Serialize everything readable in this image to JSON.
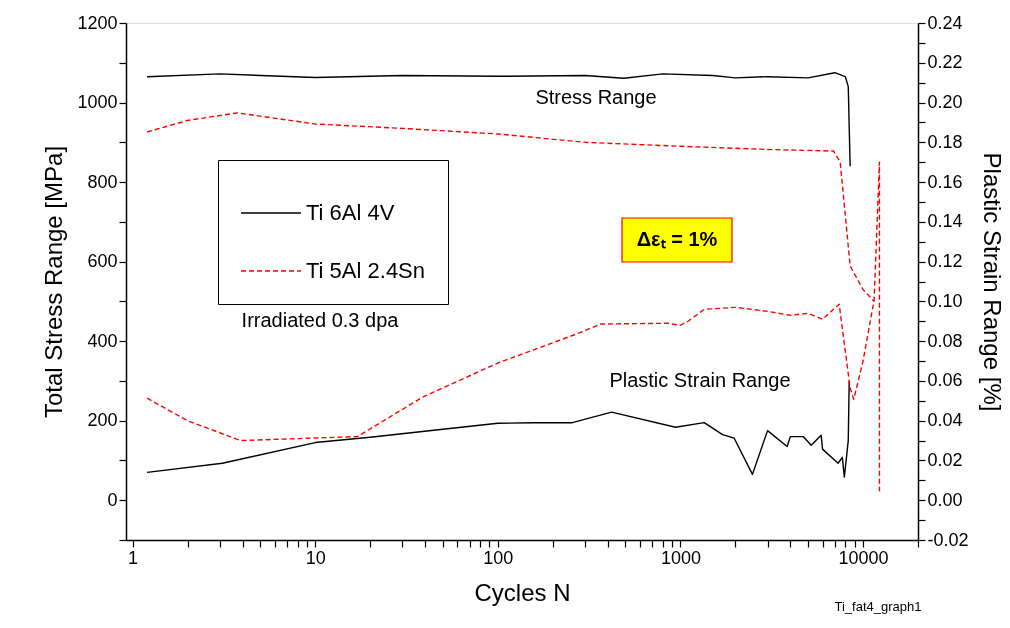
{
  "chart_data": {
    "type": "line",
    "xlabel": "Cycles N",
    "ylabel": "Total Stress Range [MPa]",
    "y2label": "Plastic Strain Range [%]",
    "log": "x",
    "grid": false,
    "legend": "top left",
    "xlim": [
      0.92,
      20000
    ],
    "xticks": [
      1,
      {
        "value": 2,
        "label": null
      },
      {
        "value": 3,
        "label": null
      },
      {
        "value": 4,
        "label": null
      },
      {
        "value": 5,
        "label": null
      },
      {
        "value": 6,
        "label": null
      },
      {
        "value": 7,
        "label": null
      },
      {
        "value": 8,
        "label": null
      },
      {
        "value": 9,
        "label": null
      },
      10,
      {
        "value": 20,
        "label": null
      },
      {
        "value": 30,
        "label": null
      },
      {
        "value": 40,
        "label": null
      },
      {
        "value": 50,
        "label": null
      },
      {
        "value": 60,
        "label": null
      },
      {
        "value": 70,
        "label": null
      },
      {
        "value": 80,
        "label": null
      },
      {
        "value": 90,
        "label": null
      },
      100,
      {
        "value": 200,
        "label": null
      },
      {
        "value": 300,
        "label": null
      },
      {
        "value": 400,
        "label": null
      },
      {
        "value": 500,
        "label": null
      },
      {
        "value": 600,
        "label": null
      },
      {
        "value": 700,
        "label": null
      },
      {
        "value": 800,
        "label": null
      },
      {
        "value": 900,
        "label": null
      },
      1000,
      {
        "value": 2000,
        "label": null
      },
      {
        "value": 3000,
        "label": null
      },
      {
        "value": 4000,
        "label": null
      },
      {
        "value": 5000,
        "label": null
      },
      {
        "value": 6000,
        "label": null
      },
      {
        "value": 7000,
        "label": null
      },
      {
        "value": 8000,
        "label": null
      },
      {
        "value": 9000,
        "label": null
      },
      10000,
      {
        "value": 20000,
        "label": null
      }
    ],
    "ylim": [
      -100,
      1200
    ],
    "yticks": [
      {
        "value": -100,
        "label": null
      },
      0,
      {
        "value": 100,
        "label": null
      },
      200,
      {
        "value": 300,
        "label": null
      },
      400,
      {
        "value": 500,
        "label": null
      },
      600,
      {
        "value": 700,
        "label": null
      },
      800,
      {
        "value": 900,
        "label": null
      },
      1000,
      {
        "value": 1100,
        "label": null
      },
      1200
    ],
    "y2lim": [
      -0.02,
      0.24
    ],
    "y2ticks": [
      -0.02,
      {
        "value": -0.01,
        "label": null
      },
      {
        "value": 0,
        "label": "0.00"
      },
      {
        "value": 0.01,
        "label": null
      },
      0.02,
      {
        "value": 0.03,
        "label": null
      },
      0.04,
      {
        "value": 0.05,
        "label": null
      },
      0.06,
      {
        "value": 0.07,
        "label": null
      },
      0.08,
      {
        "value": 0.09,
        "label": null
      },
      {
        "value": 0.1,
        "label": "0.10"
      },
      {
        "value": 0.11,
        "label": null
      },
      0.12,
      {
        "value": 0.13,
        "label": null
      },
      0.14,
      {
        "value": 0.15,
        "label": null
      },
      0.16,
      {
        "value": 0.17,
        "label": null
      },
      0.18,
      {
        "value": 0.19,
        "label": null
      },
      {
        "value": 0.2,
        "label": "0.20"
      },
      {
        "value": 0.21,
        "label": null
      },
      0.22,
      {
        "value": 0.23,
        "label": null
      },
      0.24
    ],
    "annotations": [
      "Stress Range",
      "Plastic Strain Range",
      "Irradiated 0.3 dpa",
      "Δεₜ = 1%",
      "Ti_fat4_graph1"
    ],
    "series": [
      {
        "name": "Ti 6Al 4V",
        "color": "#000000",
        "line_style": "solid",
        "x": [
          1.2,
          3,
          10,
          30,
          100,
          300,
          490,
          800,
          1500,
          2000,
          3000,
          5000,
          7000,
          8000,
          8300,
          8500
        ],
        "values": [
          1065,
          1072,
          1063,
          1068,
          1066,
          1068,
          1061,
          1072,
          1068,
          1062,
          1065,
          1062,
          1075,
          1065,
          1040,
          840
        ]
      },
      {
        "name": "Ti 5Al 2.4Sn",
        "color": "#ff0000",
        "line_style": "dashed",
        "x": [
          1.2,
          2,
          3.75,
          10,
          30,
          100,
          300,
          1000,
          3000,
          6900,
          7500,
          8500,
          10000,
          11500
        ],
        "values": [
          926,
          955,
          974,
          946,
          935,
          921,
          900,
          890,
          882,
          878,
          850,
          589,
          530,
          500
        ]
      },
      {
        "color": "#000000",
        "line_style": "solid",
        "axis": "y2",
        "x": [
          1.2,
          3.1,
          10,
          20,
          50,
          100,
          158,
          256,
          420,
          940,
          1350,
          1700,
          1970,
          2480,
          3000,
          3840,
          4000,
          4700,
          5200,
          5900,
          6000,
          7300,
          7700,
          7900,
          8300,
          8400
        ],
        "values": [
          0.014,
          0.0186,
          0.029,
          0.0317,
          0.0357,
          0.0387,
          0.039,
          0.039,
          0.0443,
          0.0367,
          0.039,
          0.033,
          0.0312,
          0.013,
          0.035,
          0.027,
          0.032,
          0.032,
          0.0277,
          0.0327,
          0.0257,
          0.0186,
          0.0216,
          0.0116,
          0.03,
          0.06
        ]
      },
      {
        "color": "#ff0000",
        "line_style": "dashed",
        "axis": "y2",
        "x": [
          1.2,
          2,
          3.9,
          8,
          17,
          39,
          100,
          277,
          365,
          850,
          1000,
          1100,
          1350,
          2000,
          3000,
          4000,
          5000,
          6000,
          7400,
          8500,
          8900,
          10000,
          11500,
          12300,
          12300
        ],
        "values": [
          0.0513,
          0.04,
          0.03,
          0.031,
          0.032,
          0.052,
          0.069,
          0.084,
          0.0886,
          0.089,
          0.088,
          0.09,
          0.096,
          0.097,
          0.095,
          0.093,
          0.094,
          0.091,
          0.0986,
          0.0564,
          0.0508,
          0.07,
          0.1006,
          0.17,
          0.0045
        ]
      }
    ]
  }
}
